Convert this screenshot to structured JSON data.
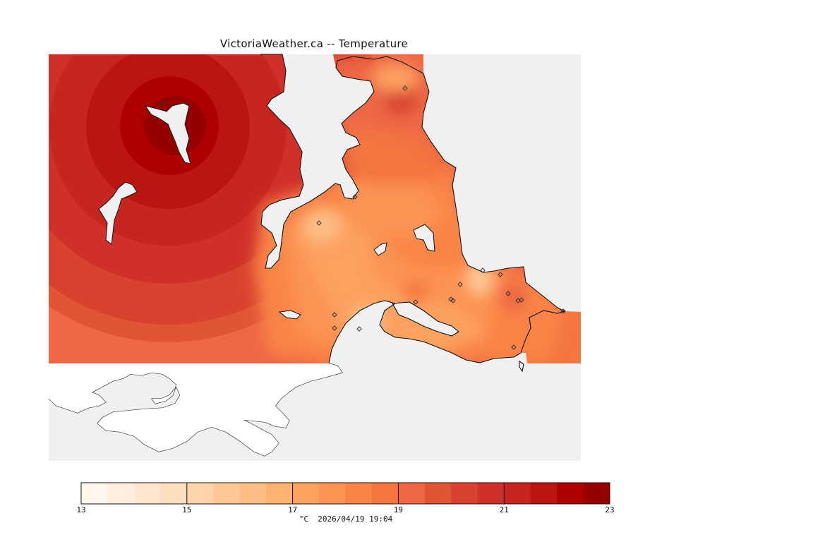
{
  "title": "VictoriaWeather.ca -- Temperature",
  "units": "°C",
  "timestamp": "2026/04/19 19:04",
  "legend": {
    "min": 13,
    "max": 23,
    "step": 0.5,
    "tick_labels": [
      "13",
      "15",
      "17",
      "19",
      "21",
      "23"
    ],
    "colors": [
      "#fff5ea",
      "#feeedd",
      "#fee6cf",
      "#fddfc0",
      "#fdd4ab",
      "#fdc896",
      "#fdbd84",
      "#fdb272",
      "#fca160",
      "#fc9352",
      "#f98446",
      "#f47540",
      "#ee6845",
      "#e15535",
      "#d84330",
      "#d0302a",
      "#c62520",
      "#bb1513",
      "#ae0000",
      "#960000"
    ]
  },
  "stations_count": 19
}
